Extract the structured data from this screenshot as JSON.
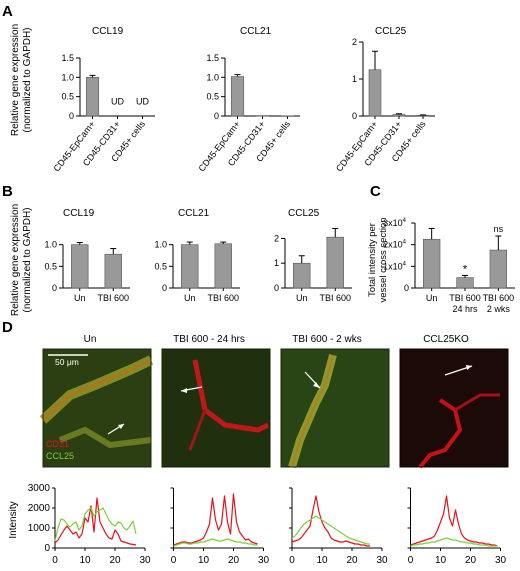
{
  "figure": {
    "panel_letters": [
      "A",
      "B",
      "C",
      "D"
    ],
    "colors": {
      "bar": "#999999",
      "red": "#e8111b",
      "green": "#7fcf3a",
      "axis": "#000000"
    }
  },
  "panelA": {
    "ylabel": [
      "Relative gene expression",
      "(normalized to GAPDH)"
    ],
    "categories": [
      "CD45-EpCam+",
      "CD45-CD31+",
      "CD45+ cells"
    ]
  },
  "panelB": {
    "ylabel": [
      "Relative gene expression",
      "(normalized to GAPDH)"
    ],
    "categories": [
      "Un",
      "TBI 600"
    ]
  },
  "panelC": {
    "ylabel": [
      "Total intensity per",
      "vessel cross section"
    ],
    "categories": [
      [
        "Un"
      ],
      [
        "TBI 600",
        "24 hrs"
      ],
      [
        "TBI 600",
        "2 wks"
      ]
    ],
    "annotations": [
      "*",
      "ns"
    ]
  },
  "panelD": {
    "image_titles": [
      "Un",
      "TBI 600 - 24 hrs",
      "TBI 600 - 2 wks",
      "CCL25KO"
    ],
    "scale_bar": "50 μm",
    "stain_labels": [
      "CD31",
      "CCL25"
    ],
    "ylabel": "Intensity"
  },
  "chart_data": [
    {
      "panel": "A",
      "type": "bar",
      "title": "CCL19",
      "categories": [
        "CD45-EpCam+",
        "CD45-CD31+",
        "CD45+ cells"
      ],
      "values": [
        1.0,
        null,
        null
      ],
      "errors": [
        0.05,
        0,
        0
      ],
      "labels": [
        "",
        "UD",
        "UD"
      ],
      "ylim": [
        0,
        1.5
      ],
      "yticks": [
        0,
        0.5,
        1.0,
        1.5
      ],
      "ytick_labels": [
        "0",
        "0.5",
        "1.0",
        "1.5"
      ]
    },
    {
      "panel": "A",
      "type": "bar",
      "title": "CCL21",
      "categories": [
        "CD45-EpCam+",
        "CD45-CD31+",
        "CD45+ cells"
      ],
      "values": [
        1.02,
        0.01,
        0.005
      ],
      "errors": [
        0.05,
        0,
        0
      ],
      "ylim": [
        0,
        1.5
      ],
      "yticks": [
        0,
        0.5,
        1.0,
        1.5
      ],
      "ytick_labels": [
        "0",
        "0.5",
        "1.0",
        "1.5"
      ]
    },
    {
      "panel": "A",
      "type": "bar",
      "title": "CCL25",
      "categories": [
        "CD45-EpCam+",
        "CD45-CD31+",
        "CD45+ cells"
      ],
      "values": [
        1.25,
        0.04,
        0.02
      ],
      "errors": [
        0.5,
        0.02,
        0.01
      ],
      "ylim": [
        0,
        2
      ],
      "yticks": [
        0,
        1,
        2
      ],
      "ytick_labels": [
        "0",
        "1",
        "2"
      ]
    },
    {
      "panel": "B",
      "type": "bar",
      "title": "CCL19",
      "categories": [
        "Un",
        "TBI 600"
      ],
      "values": [
        1.0,
        0.78
      ],
      "errors": [
        0.05,
        0.13
      ],
      "ylim": [
        0,
        1.2
      ],
      "yticks": [
        0,
        0.5,
        1.0
      ],
      "ytick_labels": [
        "0",
        "0.5",
        "1.0"
      ]
    },
    {
      "panel": "B",
      "type": "bar",
      "title": "CCL21",
      "categories": [
        "Un",
        "TBI 600"
      ],
      "values": [
        1.0,
        1.02
      ],
      "errors": [
        0.06,
        0.04
      ],
      "ylim": [
        0,
        1.2
      ],
      "yticks": [
        0,
        0.5,
        1.0
      ],
      "ytick_labels": [
        "0",
        "0.5",
        "1.0"
      ]
    },
    {
      "panel": "B",
      "type": "bar",
      "title": "CCL25",
      "categories": [
        "Un",
        "TBI 600"
      ],
      "values": [
        1.0,
        2.05
      ],
      "errors": [
        0.3,
        0.35
      ],
      "ylim": [
        0,
        2.5
      ],
      "yticks": [
        0,
        1,
        2
      ],
      "ytick_labels": [
        "0",
        "1",
        "2"
      ]
    },
    {
      "panel": "C",
      "type": "bar",
      "title": "",
      "categories": [
        "Un",
        "TBI 600 24 hrs",
        "TBI 600 2 wks"
      ],
      "values": [
        22500,
        4800,
        17500
      ],
      "errors": [
        5000,
        1000,
        6500
      ],
      "ylim": [
        0,
        30000
      ],
      "yticks": [
        0,
        10000,
        20000,
        30000
      ],
      "ytick_labels": [
        "0",
        "1x10",
        "2x10",
        "3x10"
      ],
      "ytick_exponent": "4"
    },
    {
      "panel": "D",
      "type": "line",
      "title": "Un",
      "xlim": [
        0,
        30
      ],
      "xticks": [
        0,
        10,
        20,
        30
      ],
      "ylim": [
        0,
        3000
      ],
      "yticks": [
        0,
        1000,
        2000,
        3000
      ],
      "series": [
        {
          "name": "CD31",
          "color": "#e8111b",
          "x": [
            0,
            1,
            2,
            3,
            4,
            5,
            6,
            7,
            8,
            9,
            10,
            11,
            12,
            13,
            14,
            15,
            16,
            17,
            18,
            19,
            20,
            21,
            22,
            23,
            24,
            25,
            26,
            27
          ],
          "y": [
            250,
            400,
            650,
            900,
            1100,
            900,
            700,
            800,
            500,
            700,
            1500,
            1300,
            2100,
            800,
            2500,
            1300,
            1000,
            700,
            500,
            450,
            900,
            700,
            350,
            300,
            250,
            200,
            180,
            150
          ]
        },
        {
          "name": "CCL25",
          "color": "#7fcf3a",
          "x": [
            0,
            1,
            2,
            3,
            4,
            5,
            6,
            7,
            8,
            9,
            10,
            11,
            12,
            13,
            14,
            15,
            16,
            17,
            18,
            19,
            20,
            21,
            22,
            23,
            24,
            25,
            26,
            27
          ],
          "y": [
            350,
            1000,
            1450,
            1400,
            1200,
            1050,
            1200,
            1300,
            900,
            1100,
            1700,
            1900,
            2000,
            1600,
            1800,
            1900,
            2000,
            1700,
            1400,
            1200,
            1100,
            1300,
            1250,
            1000,
            900,
            1100,
            1350,
            700
          ]
        }
      ]
    },
    {
      "panel": "D",
      "type": "line",
      "title": "TBI 600 - 24 hrs",
      "xlim": [
        0,
        30
      ],
      "xticks": [
        0,
        10,
        20,
        30
      ],
      "ylim": [
        0,
        3000
      ],
      "yticks": [
        0,
        1000,
        2000,
        3000
      ],
      "series": [
        {
          "name": "CD31",
          "color": "#e8111b",
          "x": [
            0,
            1,
            2,
            3,
            4,
            5,
            6,
            7,
            8,
            9,
            10,
            11,
            12,
            13,
            14,
            15,
            16,
            17,
            18,
            19,
            20,
            21,
            22,
            23,
            24,
            25,
            26,
            27,
            28
          ],
          "y": [
            150,
            200,
            250,
            300,
            300,
            250,
            250,
            300,
            350,
            400,
            500,
            800,
            1200,
            2500,
            1400,
            900,
            1200,
            2600,
            1300,
            700,
            2700,
            1300,
            800,
            600,
            400,
            450,
            300,
            250,
            200
          ]
        },
        {
          "name": "CCL25",
          "color": "#7fcf3a",
          "x": [
            0,
            1,
            2,
            3,
            4,
            5,
            6,
            7,
            8,
            9,
            10,
            11,
            12,
            13,
            14,
            15,
            16,
            17,
            18,
            19,
            20,
            21,
            22,
            23,
            24,
            25,
            26,
            27,
            28
          ],
          "y": [
            100,
            150,
            200,
            250,
            250,
            200,
            200,
            250,
            250,
            300,
            300,
            350,
            400,
            450,
            400,
            350,
            350,
            400,
            450,
            400,
            350,
            300,
            300,
            250,
            250,
            200,
            200,
            150,
            150
          ]
        }
      ]
    },
    {
      "panel": "D",
      "type": "line",
      "title": "TBI 600 - 2 wks",
      "xlim": [
        0,
        30
      ],
      "xticks": [
        0,
        10,
        20,
        30
      ],
      "ylim": [
        0,
        3000
      ],
      "yticks": [
        0,
        1000,
        2000,
        3000
      ],
      "series": [
        {
          "name": "CD31",
          "color": "#e8111b",
          "x": [
            0,
            1,
            2,
            3,
            4,
            5,
            6,
            7,
            8,
            9,
            10,
            11,
            12,
            13,
            14,
            15,
            16,
            17,
            18,
            19,
            20,
            21,
            22,
            23,
            24,
            25,
            26
          ],
          "y": [
            300,
            350,
            400,
            500,
            700,
            900,
            1100,
            1900,
            2600,
            1800,
            1300,
            1000,
            800,
            500,
            400,
            350,
            300,
            300,
            350,
            300,
            250,
            200,
            200,
            150,
            150,
            100,
            100
          ]
        },
        {
          "name": "CCL25",
          "color": "#7fcf3a",
          "x": [
            0,
            1,
            2,
            3,
            4,
            5,
            6,
            7,
            8,
            9,
            10,
            11,
            12,
            13,
            14,
            15,
            16,
            17,
            18,
            19,
            20,
            21,
            22,
            23,
            24,
            25,
            26
          ],
          "y": [
            500,
            600,
            800,
            1000,
            1200,
            1300,
            1400,
            1500,
            1600,
            1500,
            1400,
            1300,
            1200,
            1100,
            1000,
            900,
            800,
            700,
            600,
            500,
            450,
            400,
            350,
            300,
            250,
            200,
            200
          ]
        }
      ]
    },
    {
      "panel": "D",
      "type": "line",
      "title": "CCL25KO",
      "xlim": [
        0,
        30
      ],
      "xticks": [
        0,
        10,
        20,
        30
      ],
      "ylim": [
        0,
        3000
      ],
      "yticks": [
        0,
        1000,
        2000,
        3000
      ],
      "series": [
        {
          "name": "CD31",
          "color": "#e8111b",
          "x": [
            0,
            1,
            2,
            3,
            4,
            5,
            6,
            7,
            8,
            9,
            10,
            11,
            12,
            13,
            14,
            15,
            16,
            17,
            18,
            19,
            20,
            21,
            22,
            23,
            24,
            25,
            26,
            27,
            28,
            29
          ],
          "y": [
            150,
            200,
            250,
            300,
            350,
            400,
            450,
            500,
            600,
            900,
            1300,
            1700,
            2600,
            1500,
            1100,
            1900,
            1200,
            700,
            500,
            400,
            350,
            300,
            300,
            250,
            250,
            200,
            200,
            150,
            150,
            100
          ]
        },
        {
          "name": "CCL25",
          "color": "#7fcf3a",
          "x": [
            0,
            1,
            2,
            3,
            4,
            5,
            6,
            7,
            8,
            9,
            10,
            11,
            12,
            13,
            14,
            15,
            16,
            17,
            18,
            19,
            20,
            21,
            22,
            23,
            24,
            25,
            26,
            27,
            28,
            29
          ],
          "y": [
            100,
            150,
            150,
            200,
            200,
            250,
            250,
            300,
            300,
            350,
            400,
            450,
            500,
            450,
            400,
            400,
            350,
            300,
            300,
            250,
            250,
            200,
            200,
            150,
            150,
            150,
            100,
            100,
            100,
            100
          ]
        }
      ]
    }
  ]
}
